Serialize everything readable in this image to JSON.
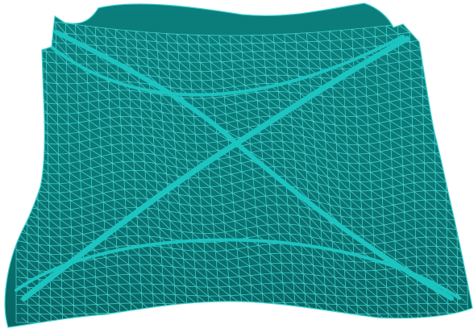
{
  "figure": {
    "subject": "mesh-surface",
    "colors": {
      "background": "#ffffff",
      "surface": "#0b7f7d",
      "surface_shadow": "#086664",
      "mesh_line": "#4fe0dc",
      "ridge": "#1cc4c0"
    }
  }
}
